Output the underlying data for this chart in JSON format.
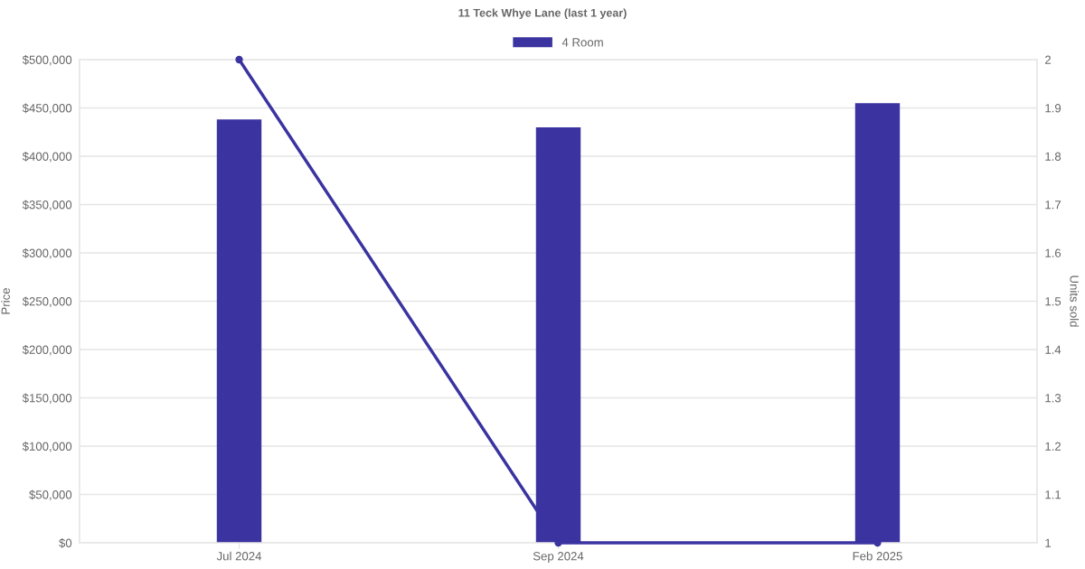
{
  "chart_data": {
    "type": "bar",
    "title": "11 Teck Whye Lane (last 1 year)",
    "ylabel": "Price",
    "y2label": "Units sold",
    "categories": [
      "Jul 2024",
      "Sep 2024",
      "Feb 2025"
    ],
    "series": [
      {
        "name": "4 Room",
        "color": "#3a33a0",
        "values": [
          438000,
          430000,
          455000
        ]
      },
      {
        "type": "line",
        "axis": "y2",
        "color": "#3a33a0",
        "values": [
          2,
          1,
          1
        ]
      }
    ],
    "ylim": [
      0,
      500000
    ],
    "yticks": [
      {
        "value": 0,
        "label": "$0"
      },
      {
        "value": 50000,
        "label": "$50,000"
      },
      {
        "value": 100000,
        "label": "$100,000"
      },
      {
        "value": 150000,
        "label": "$150,000"
      },
      {
        "value": 200000,
        "label": "$200,000"
      },
      {
        "value": 250000,
        "label": "$250,000"
      },
      {
        "value": 300000,
        "label": "$300,000"
      },
      {
        "value": 350000,
        "label": "$350,000"
      },
      {
        "value": 400000,
        "label": "$400,000"
      },
      {
        "value": 450000,
        "label": "$450,000"
      },
      {
        "value": 500000,
        "label": "$500,000"
      }
    ],
    "y2lim": [
      1,
      2
    ],
    "y2ticks": [
      1,
      1.1,
      1.2,
      1.3,
      1.4,
      1.5,
      1.6,
      1.7,
      1.8,
      1.9,
      2
    ],
    "grid": "y",
    "legend": "top",
    "marker": "circle",
    "line_style": "solid"
  }
}
